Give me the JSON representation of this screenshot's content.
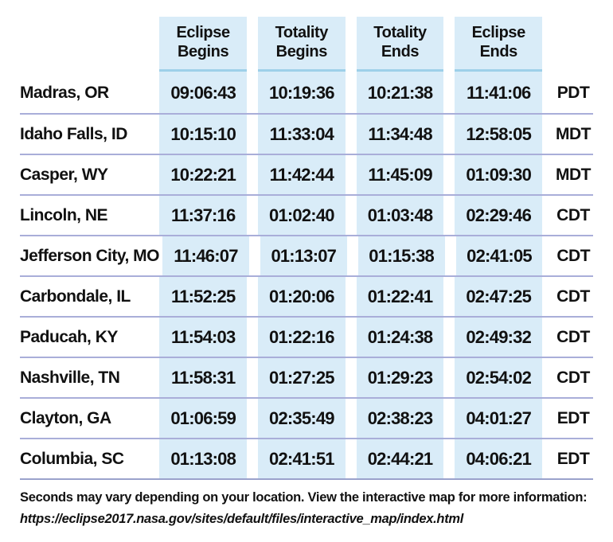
{
  "chart_data": {
    "type": "table",
    "columns": [
      "Eclipse Begins",
      "Totality Begins",
      "Totality Ends",
      "Eclipse Ends"
    ],
    "rows": [
      {
        "city": "Madras, OR",
        "times": [
          "09:06:43",
          "10:19:36",
          "10:21:38",
          "11:41:06"
        ],
        "tz": "PDT"
      },
      {
        "city": "Idaho Falls, ID",
        "times": [
          "10:15:10",
          "11:33:04",
          "11:34:48",
          "12:58:05"
        ],
        "tz": "MDT"
      },
      {
        "city": "Casper, WY",
        "times": [
          "10:22:21",
          "11:42:44",
          "11:45:09",
          "01:09:30"
        ],
        "tz": "MDT"
      },
      {
        "city": "Lincoln, NE",
        "times": [
          "11:37:16",
          "01:02:40",
          "01:03:48",
          "02:29:46"
        ],
        "tz": "CDT"
      },
      {
        "city": "Jefferson City, MO",
        "times": [
          "11:46:07",
          "01:13:07",
          "01:15:38",
          "02:41:05"
        ],
        "tz": "CDT"
      },
      {
        "city": "Carbondale, IL",
        "times": [
          "11:52:25",
          "01:20:06",
          "01:22:41",
          "02:47:25"
        ],
        "tz": "CDT"
      },
      {
        "city": "Paducah, KY",
        "times": [
          "11:54:03",
          "01:22:16",
          "01:24:38",
          "02:49:32"
        ],
        "tz": "CDT"
      },
      {
        "city": "Nashville, TN",
        "times": [
          "11:58:31",
          "01:27:25",
          "01:29:23",
          "02:54:02"
        ],
        "tz": "CDT"
      },
      {
        "city": "Clayton, GA",
        "times": [
          "01:06:59",
          "02:35:49",
          "02:38:23",
          "04:01:27"
        ],
        "tz": "EDT"
      },
      {
        "city": "Columbia, SC",
        "times": [
          "01:13:08",
          "02:41:51",
          "02:44:21",
          "04:06:21"
        ],
        "tz": "EDT"
      }
    ]
  },
  "footer": {
    "note": "Seconds may vary depending on your location. View the interactive map for more information:",
    "url": "https://eclipse2017.nasa.gov/sites/default/files/interactive_map/index.html"
  },
  "colors": {
    "column_bg": "#d9ecf8",
    "header_rule": "#9ed0e9",
    "row_separator": "#a9aed9",
    "bottom_rule": "#9aa2cc",
    "text": "#111111"
  }
}
